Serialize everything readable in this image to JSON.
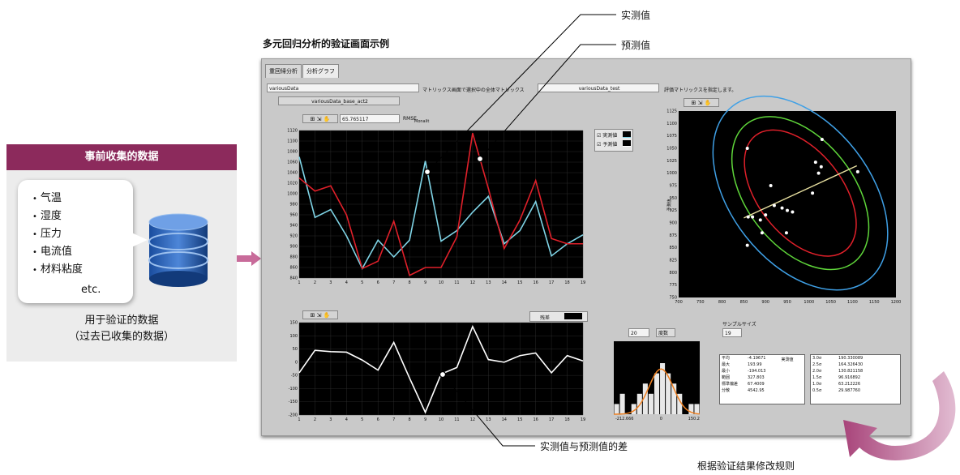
{
  "left_card": {
    "title": "事前收集的数据",
    "items": [
      "气温",
      "湿度",
      "压力",
      "电流值",
      "材料粘度"
    ],
    "etc": "etc.",
    "caption_line1": "用于验证的数据",
    "caption_line2": "（过去已收集的数据）"
  },
  "panel_title": "多元回归分析的验证画面示例",
  "window": {
    "tabs": [
      "重回帰分析",
      "分析グラフ"
    ],
    "dataset_field": "variousData",
    "dataset_sub_field": "variousData_base_act2",
    "matrix_label": "マトリックス画面で選択中の全体マトリックス",
    "matrix_field": "variousData_test",
    "matrix_hint": "評価マトリックスを指定します。",
    "rmse_value": "65.765117",
    "rmse_label": "RMSE",
    "rmse_sub": "Monalit",
    "legend_actual": "実測値",
    "legend_pred": "予測値",
    "residual_legend": "残差",
    "hist_count": "20",
    "hist_mode": "度数",
    "sample_size_label": "サンプルサイズ",
    "sample_size_value": "19",
    "hist_xmin": "-212.666",
    "hist_xmid": "0",
    "hist_xmax": "150.2",
    "scatter_xlabel": "実測値",
    "scatter_ylabel": "予測値",
    "stats_left": [
      [
        "平均",
        "-4.19671"
      ],
      [
        "最大",
        "193.99"
      ],
      [
        "最小",
        "-194.013"
      ],
      [
        "範囲",
        "327.803"
      ],
      [
        "標準偏差",
        "67.4009"
      ],
      [
        "分散",
        "4542.95"
      ]
    ],
    "stats_right": [
      [
        "3.0σ",
        "190.330089"
      ],
      [
        "2.5σ",
        "164.326430"
      ],
      [
        "2.0σ",
        "130.821158"
      ],
      [
        "1.5σ",
        "96.916892"
      ],
      [
        "1.0σ",
        "63.212226"
      ],
      [
        "0.5σ",
        "29.987760"
      ]
    ]
  },
  "callouts": {
    "actual": "实测值",
    "predicted": "预测值",
    "diff": "实测值与预测值的差",
    "loop": "根据验证结果修改规则"
  },
  "chart_data": [
    {
      "type": "line",
      "x": [
        1,
        2,
        3,
        4,
        5,
        6,
        7,
        8,
        9,
        10,
        11,
        12,
        13,
        14,
        15,
        16,
        17,
        18,
        19
      ],
      "ylim": [
        840,
        1120
      ],
      "yticks": [
        840,
        860,
        880,
        900,
        920,
        940,
        960,
        980,
        1000,
        1020,
        1040,
        1060,
        1080,
        1100,
        1120
      ],
      "series": [
        {
          "name": "実測値",
          "color": "#7fd4e6",
          "values": [
            1070,
            955,
            970,
            920,
            858,
            912,
            880,
            912,
            1062,
            910,
            930,
            965,
            995,
            905,
            930,
            985,
            882,
            905,
            922
          ]
        },
        {
          "name": "予測値",
          "color": "#e0202a",
          "values": [
            1030,
            1005,
            1015,
            960,
            858,
            872,
            948,
            845,
            860,
            860,
            918,
            1115,
            1010,
            896,
            950,
            1025,
            915,
            905,
            905
          ]
        }
      ]
    },
    {
      "type": "line",
      "x": [
        1,
        2,
        3,
        4,
        5,
        6,
        7,
        8,
        9,
        10,
        11,
        12,
        13,
        14,
        15,
        16,
        17,
        18,
        19
      ],
      "ylim": [
        -200,
        150
      ],
      "yticks": [
        -200,
        -150,
        -100,
        -50,
        0,
        50,
        100,
        150
      ],
      "series": [
        {
          "name": "残差",
          "color": "#ffffff",
          "values": [
            -40,
            45,
            40,
            38,
            8,
            -30,
            75,
            -60,
            -190,
            -45,
            -20,
            135,
            10,
            0,
            25,
            35,
            -40,
            25,
            5
          ]
        }
      ]
    },
    {
      "type": "scatter",
      "xlim": [
        700,
        1200
      ],
      "ylim": [
        750,
        1125
      ],
      "xticks": [
        700,
        750,
        800,
        850,
        900,
        950,
        1000,
        1050,
        1100,
        1150,
        1200
      ],
      "yticks": [
        750,
        775,
        800,
        825,
        850,
        875,
        900,
        925,
        950,
        975,
        1000,
        1025,
        1050,
        1075,
        1100,
        1125
      ],
      "points": [
        [
          858,
          1050
        ],
        [
          962,
          922
        ],
        [
          1030,
          1068
        ],
        [
          1015,
          1022
        ],
        [
          1028,
          1013
        ],
        [
          1008,
          960
        ],
        [
          1022,
          1000
        ],
        [
          1112,
          1003
        ],
        [
          858,
          855
        ],
        [
          860,
          912
        ],
        [
          870,
          912
        ],
        [
          888,
          906
        ],
        [
          892,
          880
        ],
        [
          900,
          916
        ],
        [
          912,
          975
        ],
        [
          920,
          935
        ],
        [
          938,
          930
        ],
        [
          950,
          925
        ],
        [
          948,
          880
        ]
      ],
      "fit_line": [
        [
          850,
          910
        ],
        [
          1110,
          1015
        ]
      ],
      "ellipses": [
        {
          "color": "#e0202a"
        },
        {
          "color": "#5fd63a"
        },
        {
          "color": "#3fa0e6"
        }
      ]
    },
    {
      "type": "bar",
      "xlim": [
        -212.666,
        150.2
      ],
      "values": [
        1,
        2,
        0,
        1,
        2,
        3,
        2,
        4,
        5,
        4,
        3,
        2,
        0,
        1,
        1
      ],
      "curve_color": "#f08020"
    }
  ]
}
